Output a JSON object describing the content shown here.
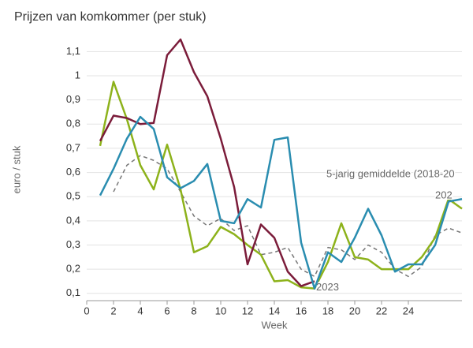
{
  "chart_data": {
    "type": "line",
    "title": "Prijzen van komkommer (per stuk)",
    "x_label": "Week",
    "y_label": "euro / stuk",
    "x": [
      1,
      2,
      3,
      4,
      5,
      6,
      7,
      8,
      9,
      10,
      11,
      12,
      13,
      14,
      15,
      16,
      17,
      18,
      19,
      20,
      21,
      22,
      23,
      24,
      25,
      26,
      27,
      28
    ],
    "series": [
      {
        "name": "5-jarig gemiddelde (2018-20",
        "color": "#777777",
        "dashed": true,
        "values": [
          null,
          0.52,
          0.63,
          0.67,
          0.65,
          0.615,
          0.52,
          0.42,
          0.38,
          0.41,
          0.36,
          0.38,
          0.26,
          0.27,
          0.29,
          0.2,
          0.17,
          0.29,
          0.28,
          0.24,
          0.3,
          0.27,
          0.2,
          0.17,
          0.21,
          0.34,
          0.37,
          0.35
        ]
      },
      {
        "color": "#8db21b",
        "values": [
          0.71,
          0.975,
          0.82,
          0.63,
          0.53,
          0.715,
          0.53,
          0.27,
          0.295,
          0.375,
          0.345,
          0.3,
          0.26,
          0.15,
          0.155,
          0.125,
          0.12,
          0.23,
          0.39,
          0.25,
          0.24,
          0.2,
          0.2,
          0.2,
          0.25,
          0.33,
          0.49,
          0.45
        ]
      },
      {
        "name": "2023",
        "color": "#7b1c3a",
        "values": [
          0.73,
          0.835,
          0.825,
          0.8,
          0.805,
          1.085,
          1.15,
          1.015,
          0.915,
          0.74,
          0.54,
          0.22,
          0.385,
          0.33,
          0.19,
          0.13,
          0.15,
          null,
          null,
          null,
          null,
          null,
          null,
          null,
          null,
          null,
          null,
          null
        ]
      },
      {
        "name": "202",
        "color": "#2a8db0",
        "values": [
          0.505,
          0.615,
          0.74,
          0.83,
          0.78,
          0.58,
          0.535,
          0.565,
          0.635,
          0.4,
          0.39,
          0.49,
          0.455,
          0.735,
          0.745,
          0.31,
          0.12,
          0.27,
          0.23,
          0.33,
          0.45,
          0.34,
          0.19,
          0.22,
          0.22,
          0.3,
          0.48,
          0.49
        ]
      }
    ],
    "xlim": [
      0,
      28
    ],
    "xticks": [
      0,
      2,
      4,
      6,
      8,
      10,
      12,
      14,
      16,
      18,
      20,
      22,
      24
    ],
    "ylim": [
      0.07,
      1.15
    ],
    "yticks": [
      {
        "value": 0.1,
        "label": "0,1"
      },
      {
        "value": 0.2,
        "label": "0,2"
      },
      {
        "value": 0.3,
        "label": "0,3"
      },
      {
        "value": 0.4,
        "label": "0,4"
      },
      {
        "value": 0.5,
        "label": "0,5"
      },
      {
        "value": 0.6,
        "label": "0,6"
      },
      {
        "value": 0.7,
        "label": "0,7"
      },
      {
        "value": 0.8,
        "label": "0,8"
      },
      {
        "value": 0.9,
        "label": "0,9"
      },
      {
        "value": 1,
        "label": "1"
      },
      {
        "value": 1.1,
        "label": "1,1"
      }
    ],
    "grid": true
  }
}
